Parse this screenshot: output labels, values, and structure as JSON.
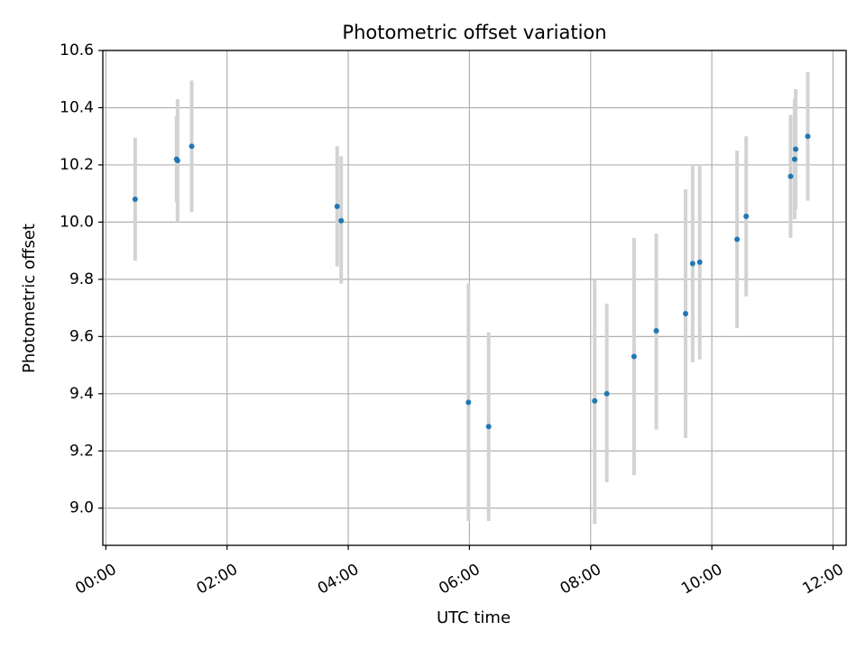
{
  "chart_data": {
    "type": "scatter",
    "title": "Photometric offset variation",
    "xlabel": "UTC time",
    "ylabel": "Photometric offset",
    "x_ticks": [
      "00:00",
      "02:00",
      "04:00",
      "06:00",
      "08:00",
      "10:00",
      "12:00"
    ],
    "y_ticks": [
      "9.0",
      "9.2",
      "9.4",
      "9.6",
      "9.8",
      "10.0",
      "10.2",
      "10.4",
      "10.6"
    ],
    "xlim": [
      "-00:03",
      "12:13"
    ],
    "ylim": [
      8.87,
      10.6
    ],
    "grid": true,
    "colors": {
      "point": "#1f77b4",
      "errorbar": "#d3d3d3",
      "grid": "#b0b0b0"
    },
    "series": [
      {
        "x": [
          "00:29",
          "01:10",
          "01:11",
          "01:25",
          "03:49",
          "03:53",
          "05:59",
          "06:19",
          "08:04",
          "08:16",
          "08:43",
          "09:05",
          "09:34",
          "09:41",
          "09:48",
          "10:25",
          "10:34",
          "11:18",
          "11:22",
          "11:23",
          "11:35"
        ],
        "y": [
          10.08,
          10.22,
          10.215,
          10.265,
          10.055,
          10.005,
          9.37,
          9.285,
          9.375,
          9.4,
          9.53,
          9.62,
          9.68,
          9.855,
          9.86,
          9.94,
          10.02,
          10.16,
          10.22,
          10.255,
          10.3
        ],
        "error_low": [
          9.865,
          10.07,
          10.0,
          10.035,
          9.845,
          9.785,
          8.955,
          8.955,
          8.945,
          9.09,
          9.115,
          9.275,
          9.245,
          9.51,
          9.52,
          9.63,
          9.74,
          9.945,
          10.01,
          10.045,
          10.075
        ],
        "error_high": [
          10.295,
          10.37,
          10.43,
          10.495,
          10.265,
          10.23,
          9.785,
          9.615,
          9.8,
          9.715,
          9.945,
          9.96,
          10.115,
          10.2,
          10.2,
          10.25,
          10.3,
          10.375,
          10.43,
          10.465,
          10.525
        ]
      }
    ]
  }
}
